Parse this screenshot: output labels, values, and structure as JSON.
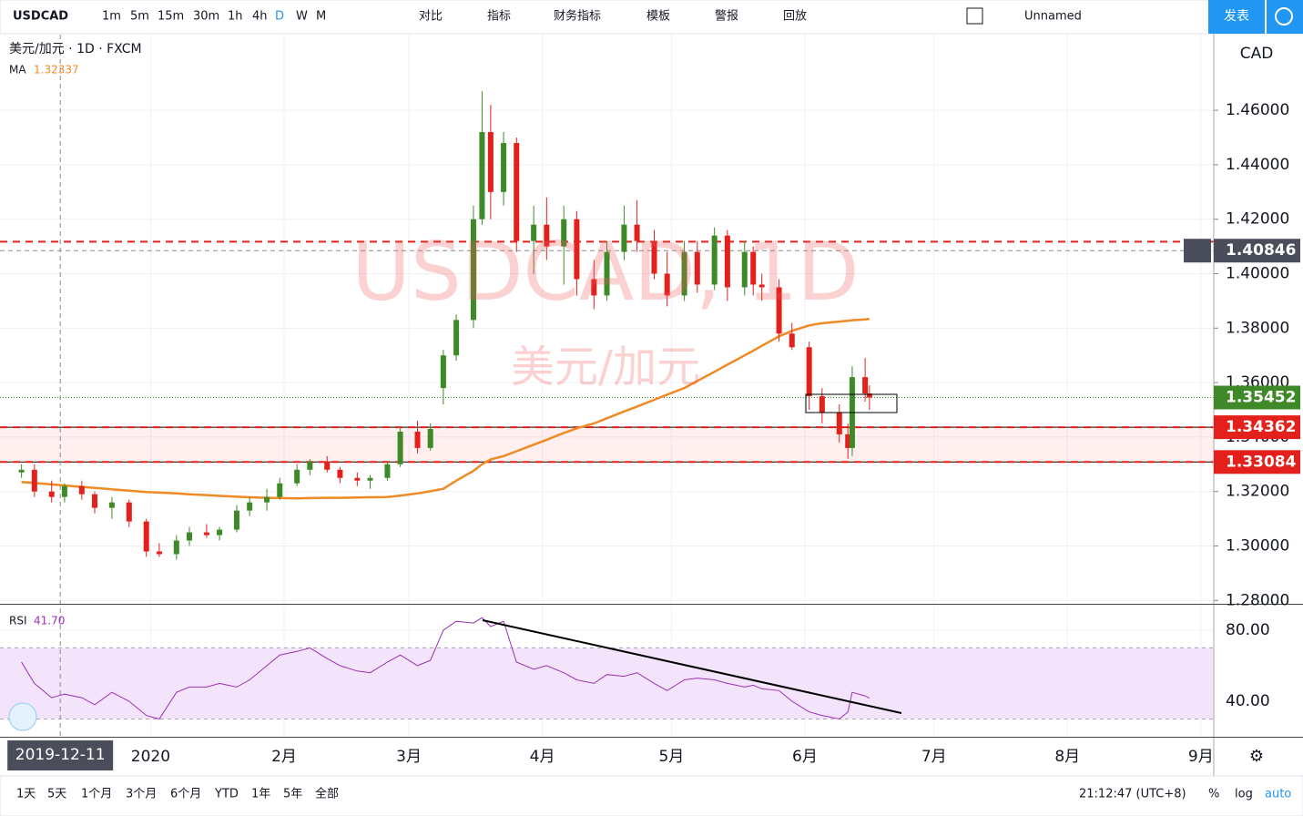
{
  "toolbar": {
    "symbol": "USDCAD",
    "intervals": [
      "1m",
      "5m",
      "15m",
      "30m",
      "1h",
      "4h",
      "D",
      "W",
      "M"
    ],
    "active_interval": "D",
    "buttons": [
      "对比",
      "指标",
      "财务指标",
      "模板",
      "警报",
      "回放"
    ],
    "layout": "Unnamed",
    "publish": "发表"
  },
  "bottom_bar": {
    "ranges": [
      "1天",
      "5天",
      "1个月",
      "3个月",
      "6个月",
      "YTD",
      "1年",
      "5年",
      "全部"
    ],
    "clock": "21:12:47 (UTC+8)",
    "options": [
      "%",
      "log",
      "auto"
    ]
  },
  "chart_data": {
    "type": "candlestick",
    "title": "美元/加元 · 1D · FXCM",
    "currency": "CAD",
    "watermark": [
      "USDCAD, 1D",
      "美元/加元"
    ],
    "up_color": "#3f8a28",
    "down_color": "#e3201b",
    "x": [
      "2019-12-02",
      "2019-12-05",
      "2019-12-09",
      "2019-12-12",
      "2019-12-16",
      "2019-12-19",
      "2019-12-23",
      "2019-12-27",
      "2019-12-31",
      "2020-01-03",
      "2020-01-07",
      "2020-01-10",
      "2020-01-14",
      "2020-01-17",
      "2020-01-21",
      "2020-01-24",
      "2020-01-28",
      "2020-01-31",
      "2020-02-04",
      "2020-02-07",
      "2020-02-11",
      "2020-02-14",
      "2020-02-18",
      "2020-02-21",
      "2020-02-25",
      "2020-02-28",
      "2020-03-03",
      "2020-03-06",
      "2020-03-09",
      "2020-03-12",
      "2020-03-16",
      "2020-03-18",
      "2020-03-20",
      "2020-03-23",
      "2020-03-26",
      "2020-03-30",
      "2020-04-02",
      "2020-04-06",
      "2020-04-09",
      "2020-04-13",
      "2020-04-16",
      "2020-04-20",
      "2020-04-23",
      "2020-04-27",
      "2020-04-30",
      "2020-05-04",
      "2020-05-07",
      "2020-05-11",
      "2020-05-14",
      "2020-05-18",
      "2020-05-20",
      "2020-05-22",
      "2020-05-26",
      "2020-05-29",
      "2020-06-02",
      "2020-06-05",
      "2020-06-09",
      "2020-06-11",
      "2020-06-12",
      "2020-06-15",
      "2020-06-16"
    ],
    "open": [
      1.327,
      1.328,
      1.32,
      1.318,
      1.322,
      1.319,
      1.314,
      1.316,
      1.309,
      1.298,
      1.297,
      1.302,
      1.305,
      1.304,
      1.306,
      1.313,
      1.316,
      1.318,
      1.323,
      1.328,
      1.331,
      1.328,
      1.325,
      1.324,
      1.325,
      1.33,
      1.342,
      1.336,
      1.358,
      1.37,
      1.383,
      1.42,
      1.452,
      1.43,
      1.448,
      1.412,
      1.418,
      1.41,
      1.42,
      1.398,
      1.392,
      1.408,
      1.418,
      1.412,
      1.4,
      1.392,
      1.408,
      1.396,
      1.414,
      1.395,
      1.408,
      1.396,
      1.395,
      1.378,
      1.373,
      1.355,
      1.349,
      1.341,
      1.336,
      1.362,
      1.356
    ],
    "high": [
      1.33,
      1.33,
      1.324,
      1.323,
      1.324,
      1.32,
      1.318,
      1.317,
      1.31,
      1.301,
      1.304,
      1.307,
      1.308,
      1.307,
      1.315,
      1.318,
      1.321,
      1.325,
      1.33,
      1.332,
      1.333,
      1.329,
      1.327,
      1.326,
      1.331,
      1.344,
      1.346,
      1.345,
      1.372,
      1.385,
      1.425,
      1.467,
      1.462,
      1.452,
      1.45,
      1.425,
      1.428,
      1.425,
      1.423,
      1.405,
      1.412,
      1.425,
      1.427,
      1.416,
      1.408,
      1.412,
      1.412,
      1.417,
      1.416,
      1.412,
      1.41,
      1.4,
      1.398,
      1.382,
      1.375,
      1.358,
      1.352,
      1.345,
      1.366,
      1.369,
      1.359
    ],
    "low": [
      1.325,
      1.318,
      1.316,
      1.316,
      1.317,
      1.312,
      1.31,
      1.307,
      1.296,
      1.296,
      1.295,
      1.3,
      1.303,
      1.302,
      1.305,
      1.311,
      1.313,
      1.317,
      1.322,
      1.326,
      1.327,
      1.323,
      1.322,
      1.321,
      1.324,
      1.329,
      1.334,
      1.335,
      1.352,
      1.368,
      1.38,
      1.418,
      1.42,
      1.425,
      1.408,
      1.4,
      1.405,
      1.396,
      1.392,
      1.387,
      1.39,
      1.405,
      1.408,
      1.398,
      1.388,
      1.39,
      1.393,
      1.394,
      1.39,
      1.392,
      1.392,
      1.39,
      1.375,
      1.372,
      1.35,
      1.345,
      1.338,
      1.332,
      1.333,
      1.353,
      1.35
    ],
    "close": [
      1.328,
      1.32,
      1.318,
      1.322,
      1.319,
      1.314,
      1.316,
      1.309,
      1.298,
      1.297,
      1.302,
      1.305,
      1.304,
      1.306,
      1.313,
      1.316,
      1.318,
      1.323,
      1.328,
      1.331,
      1.328,
      1.325,
      1.324,
      1.325,
      1.33,
      1.342,
      1.336,
      1.343,
      1.37,
      1.383,
      1.42,
      1.452,
      1.43,
      1.448,
      1.412,
      1.418,
      1.41,
      1.42,
      1.398,
      1.392,
      1.408,
      1.418,
      1.412,
      1.4,
      1.392,
      1.408,
      1.396,
      1.414,
      1.395,
      1.408,
      1.396,
      1.395,
      1.378,
      1.373,
      1.355,
      1.349,
      1.341,
      1.336,
      1.362,
      1.356,
      1.35452
    ],
    "series": [
      {
        "name": "MA",
        "color": "#f08a24",
        "crosshair_value": 1.32337,
        "values": [
          1.3235,
          1.3231,
          1.3226,
          1.3222,
          1.3217,
          1.3213,
          1.3208,
          1.3203,
          1.3198,
          1.3196,
          1.3193,
          1.319,
          1.3187,
          1.3184,
          1.3181,
          1.3179,
          1.3177,
          1.3176,
          1.3175,
          1.3176,
          1.3177,
          1.3177,
          1.3178,
          1.3179,
          1.318,
          1.3185,
          1.3193,
          1.3201,
          1.321,
          1.324,
          1.3276,
          1.33,
          1.3318,
          1.333,
          1.3348,
          1.3372,
          1.339,
          1.3415,
          1.3432,
          1.345,
          1.3469,
          1.3494,
          1.3512,
          1.3537,
          1.3556,
          1.358,
          1.3606,
          1.364,
          1.3666,
          1.37,
          1.3717,
          1.3735,
          1.377,
          1.379,
          1.381,
          1.3818,
          1.3824,
          1.3827,
          1.3829,
          1.3832,
          1.3834
        ]
      },
      {
        "name": "RSI",
        "color": "#9b30b8",
        "axis": "y2",
        "last_label": "41.70",
        "values": [
          62,
          50,
          42,
          44,
          42,
          38,
          45,
          40,
          32,
          30,
          45,
          48,
          48,
          50,
          48,
          52,
          60,
          66,
          68,
          70,
          64,
          60,
          57,
          56,
          62,
          66,
          60,
          63,
          80,
          85,
          84,
          87,
          82,
          85,
          62,
          58,
          60,
          56,
          52,
          50,
          55,
          54,
          56,
          50,
          46,
          52,
          53,
          52,
          50,
          48,
          49,
          47,
          46,
          40,
          34,
          32,
          30,
          34,
          45,
          43,
          41.7
        ]
      }
    ],
    "xlim": [
      "2019-11-27",
      "2020-09-04"
    ],
    "xticks": [
      {
        "value": "2020-01-01",
        "label": "2020"
      },
      {
        "value": "2020-02-01",
        "label": "2月"
      },
      {
        "value": "2020-03-01",
        "label": "3月"
      },
      {
        "value": "2020-04-01",
        "label": "4月"
      },
      {
        "value": "2020-05-01",
        "label": "5月"
      },
      {
        "value": "2020-06-01",
        "label": "6月"
      },
      {
        "value": "2020-07-01",
        "label": "7月"
      },
      {
        "value": "2020-08-01",
        "label": "8月"
      },
      {
        "value": "2020-09-01",
        "label": "9月"
      }
    ],
    "ylim": [
      1.2791,
      1.4878
    ],
    "yticks": [
      {
        "value": 1.28,
        "label": "1.28000"
      },
      {
        "value": 1.3,
        "label": "1.30000"
      },
      {
        "value": 1.32,
        "label": "1.32000"
      },
      {
        "value": 1.34,
        "label": "1.34000"
      },
      {
        "value": 1.36,
        "label": "1.36000"
      },
      {
        "value": 1.38,
        "label": "1.38000"
      },
      {
        "value": 1.4,
        "label": "1.40000"
      },
      {
        "value": 1.42,
        "label": "1.42000"
      },
      {
        "value": 1.44,
        "label": "1.44000"
      },
      {
        "value": 1.46,
        "label": "1.46000"
      }
    ],
    "y2lim": [
      20.5,
      93.8
    ],
    "y2ticks": [
      {
        "value": 80,
        "label": "80.00"
      },
      {
        "value": 40,
        "label": "40.00"
      }
    ],
    "rsi_band": [
      30,
      70
    ],
    "grid": true,
    "zone": [
      1.33084,
      1.34362
    ],
    "hlines": [
      {
        "value": 1.41177,
        "color": "#e3201b"
      },
      {
        "value": 1.34362,
        "color": "#e3201b"
      },
      {
        "value": 1.33084,
        "color": "#e3201b"
      }
    ],
    "price_labels": [
      {
        "value": 1.35452,
        "color": "#3f8a28"
      },
      {
        "value": 1.34362,
        "color": "#e3201b"
      },
      {
        "value": 1.33084,
        "color": "#e3201b"
      }
    ],
    "crosshair": {
      "x": "2019-12-11",
      "y": 1.40846
    }
  }
}
